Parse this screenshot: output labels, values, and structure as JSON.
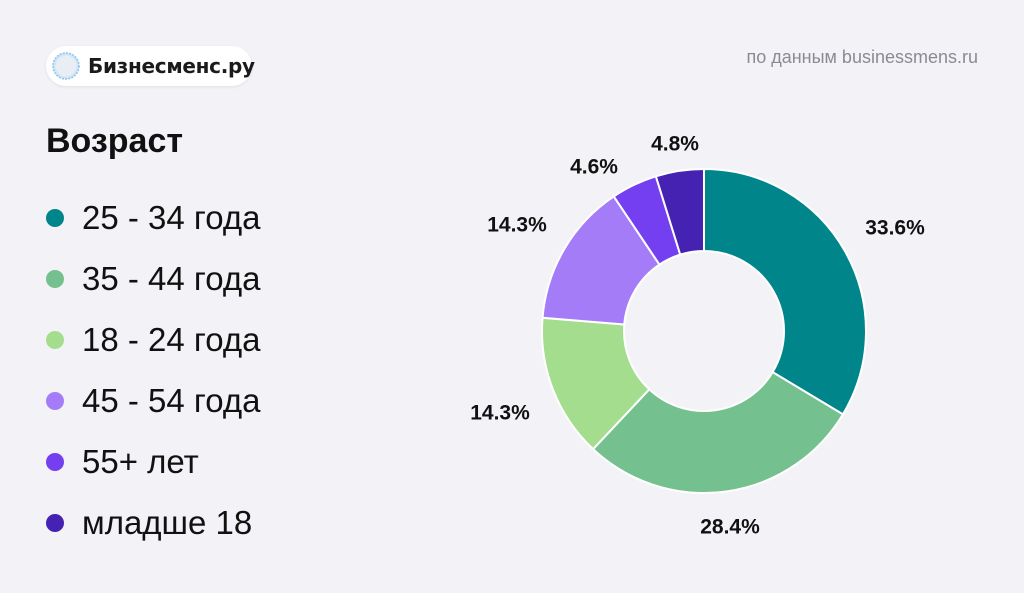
{
  "brand": {
    "name": "Бизнесменс.ру"
  },
  "source": "по данным businessmens.ru",
  "chart_data": {
    "type": "pie",
    "variant": "donut",
    "title": "Возраст",
    "categories": [
      "25 - 34 года",
      "35 - 44 года",
      "18 - 24 года",
      "45 - 54 года",
      "55+ лет",
      "младше 18"
    ],
    "values": [
      33.6,
      28.4,
      14.3,
      14.3,
      4.6,
      4.8
    ],
    "data_labels": [
      "33.6%",
      "28.4%",
      "14.3%",
      "14.3%",
      "4.6%",
      "4.8%"
    ],
    "colors": [
      "#00868a",
      "#74c18f",
      "#a4dd8e",
      "#a57cf7",
      "#733ff0",
      "#4622b3"
    ],
    "legend_position": "left"
  }
}
